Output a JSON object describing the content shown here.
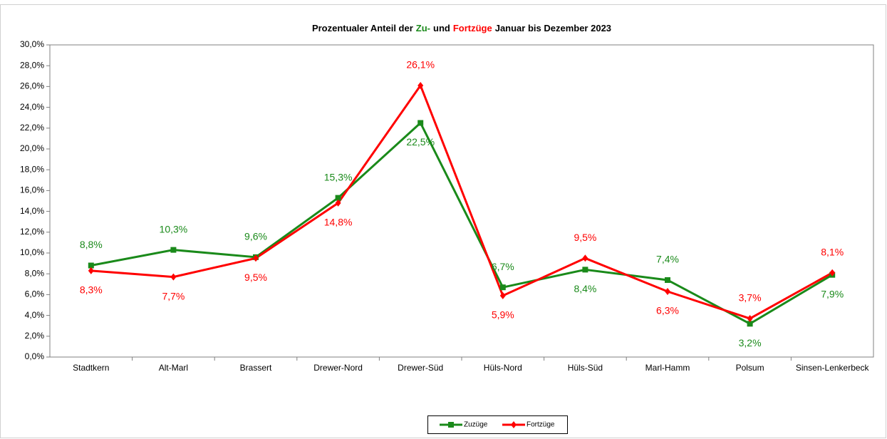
{
  "chart_data": {
    "type": "line",
    "title_parts": [
      {
        "text": "Prozentualer Anteil der",
        "color": "#000000"
      },
      {
        "text": "Zu-",
        "color": "#1a8a1a"
      },
      {
        "text": "und",
        "color": "#000000"
      },
      {
        "text": "Fortzüge",
        "color": "#ff0000"
      },
      {
        "text": "Januar bis Dezember 2023",
        "color": "#000000"
      }
    ],
    "categories": [
      "Stadtkern",
      "Alt-Marl",
      "Brassert",
      "Drewer-Nord",
      "Drewer-Süd",
      "Hüls-Nord",
      "Hüls-Süd",
      "Marl-Hamm",
      "Polsum",
      "Sinsen-Lenkerbeck"
    ],
    "series": [
      {
        "name": "Zuzüge",
        "color": "#1a8a1a",
        "marker": "square",
        "values": [
          8.8,
          10.3,
          9.6,
          15.3,
          22.5,
          6.7,
          8.4,
          7.4,
          3.2,
          7.9
        ],
        "value_labels": [
          "8,8%",
          "10,3%",
          "9,6%",
          "15,3%",
          "22,5%",
          "6,7%",
          "8,4%",
          "7,4%",
          "3,2%",
          "7,9%"
        ]
      },
      {
        "name": "Fortzüge",
        "color": "#ff0000",
        "marker": "diamond",
        "values": [
          8.3,
          7.7,
          9.5,
          14.8,
          26.1,
          5.9,
          9.5,
          6.3,
          3.7,
          8.1
        ],
        "value_labels": [
          "8,3%",
          "7,7%",
          "9,5%",
          "14,8%",
          "26,1%",
          "5,9%",
          "9,5%",
          "6,3%",
          "3,7%",
          "8,1%"
        ]
      }
    ],
    "ylim": [
      0,
      30
    ],
    "yticks": [
      {
        "value": 0,
        "label": "0,0%"
      },
      {
        "value": 2,
        "label": "2,0%"
      },
      {
        "value": 4,
        "label": "4,0%"
      },
      {
        "value": 6,
        "label": "6,0%"
      },
      {
        "value": 8,
        "label": "8,0%"
      },
      {
        "value": 10,
        "label": "10,0%"
      },
      {
        "value": 12,
        "label": "12,0%"
      },
      {
        "value": 14,
        "label": "14,0%"
      },
      {
        "value": 16,
        "label": "16,0%"
      },
      {
        "value": 18,
        "label": "18,0%"
      },
      {
        "value": 20,
        "label": "20,0%"
      },
      {
        "value": 22,
        "label": "22,0%"
      },
      {
        "value": 24,
        "label": "24,0%"
      },
      {
        "value": 26,
        "label": "26,0%"
      },
      {
        "value": 28,
        "label": "28,0%"
      },
      {
        "value": 30,
        "label": "30,0%"
      }
    ],
    "grid": false,
    "legend": "bottom"
  }
}
